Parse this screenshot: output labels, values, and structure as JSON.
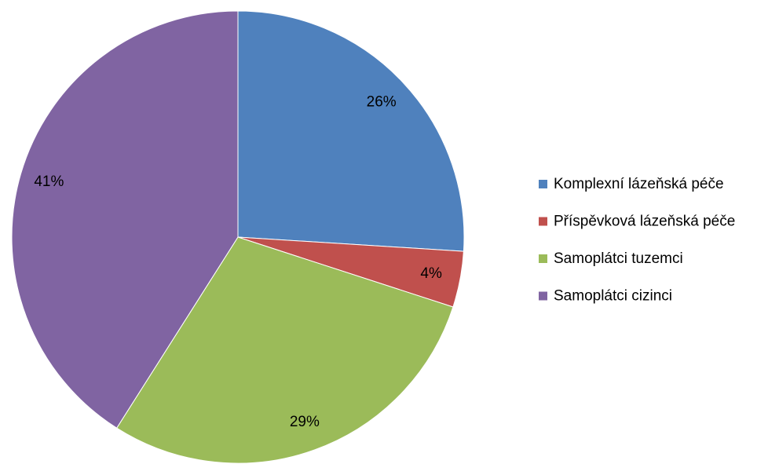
{
  "chart_data": {
    "type": "pie",
    "categories": [
      "Komplexní lázeňská péče",
      "Příspěvková lázeňská péče",
      "Samoplátci tuzemci",
      "Samoplátci cizinci"
    ],
    "values": [
      26,
      4,
      29,
      41
    ],
    "value_labels": [
      "26%",
      "4%",
      "29%",
      "41%"
    ],
    "colors": [
      "#4f81bd",
      "#c0504d",
      "#9bbb59",
      "#8064a2"
    ],
    "legend": "right"
  }
}
